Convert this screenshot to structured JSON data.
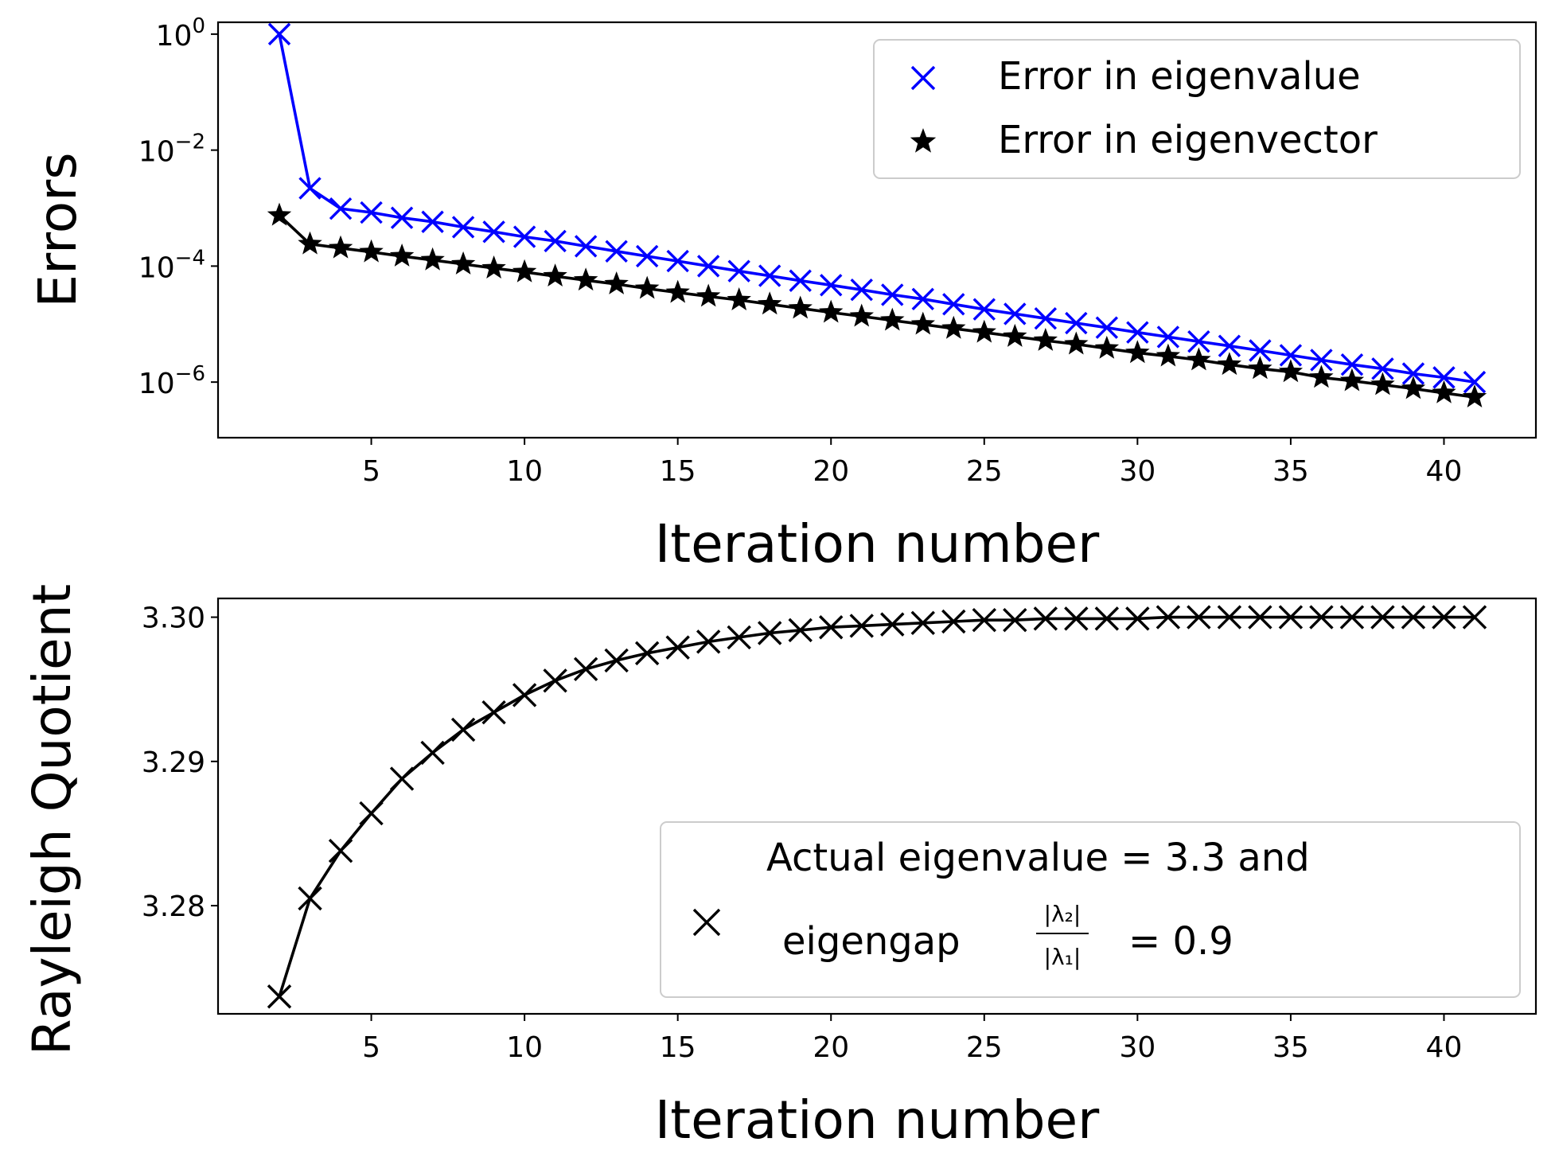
{
  "chart_data": [
    {
      "type": "line",
      "xlabel": "Iteration number",
      "ylabel": "Errors",
      "yscale": "log",
      "xlim": [
        0,
        43
      ],
      "ylim": [
        1.1e-07,
        1.6
      ],
      "xticks": [
        5,
        10,
        15,
        20,
        25,
        30,
        35,
        40
      ],
      "yticks": [
        {
          "value": 1,
          "base": "10",
          "exp": "0"
        },
        {
          "value": 0.01,
          "base": "10",
          "exp": "−2"
        },
        {
          "value": 0.0001,
          "base": "10",
          "exp": "−4"
        },
        {
          "value": 1e-06,
          "base": "10",
          "exp": "−6"
        }
      ],
      "legend": "top-right",
      "x": [
        2,
        3,
        4,
        5,
        6,
        7,
        8,
        9,
        10,
        11,
        12,
        13,
        14,
        15,
        16,
        17,
        18,
        19,
        20,
        21,
        22,
        23,
        24,
        25,
        26,
        27,
        28,
        29,
        30,
        31,
        32,
        33,
        34,
        35,
        36,
        37,
        38,
        39,
        40,
        41
      ],
      "series": [
        {
          "name": "Error in eigenvalue",
          "color": "#0000ff",
          "marker": "x",
          "values": [
            1.0,
            0.0022,
            0.00098,
            0.00084,
            0.00068,
            0.00058,
            0.00047,
            0.00039,
            0.00032,
            0.00027,
            0.00022,
            0.00018,
            0.000148,
            0.000122,
            0.0001,
            8.2e-05,
            6.8e-05,
            5.6e-05,
            4.7e-05,
            3.9e-05,
            3.2e-05,
            2.7e-05,
            2.2e-05,
            1.8e-05,
            1.5e-05,
            1.25e-05,
            1.04e-05,
            8.7e-06,
            7.2e-06,
            6e-06,
            5e-06,
            4.2e-06,
            3.5e-06,
            2.9e-06,
            2.4e-06,
            2e-06,
            1.7e-06,
            1.4e-06,
            1.2e-06,
            1e-06
          ]
        },
        {
          "name": "Error in eigenvector",
          "color": "#000000",
          "marker": "star",
          "values": [
            0.00075,
            0.00024,
            0.000205,
            0.000175,
            0.000148,
            0.000127,
            0.000108,
            9.2e-05,
            7.9e-05,
            6.7e-05,
            5.7e-05,
            4.9e-05,
            4.1e-05,
            3.5e-05,
            3e-05,
            2.6e-05,
            2.2e-05,
            1.87e-05,
            1.59e-05,
            1.36e-05,
            1.16e-05,
            9.9e-06,
            8.4e-06,
            7.2e-06,
            6.1e-06,
            5.2e-06,
            4.5e-06,
            3.8e-06,
            3.2e-06,
            2.8e-06,
            2.4e-06,
            2e-06,
            1.7e-06,
            1.5e-06,
            1.2e-06,
            1.05e-06,
            9e-07,
            7.7e-07,
            6.5e-07,
            5.5e-07
          ]
        }
      ]
    },
    {
      "type": "line",
      "xlabel": "Iteration number",
      "ylabel": "Rayleigh Quotient",
      "xlim": [
        0,
        43
      ],
      "ylim": [
        3.2725,
        3.3013
      ],
      "xticks": [
        5,
        10,
        15,
        20,
        25,
        30,
        35,
        40
      ],
      "yticks": [
        "3.28",
        "3.29",
        "3.30"
      ],
      "legend": "lower-right",
      "legend_text": {
        "line1": "Actual eigenvalue = 3.3  and",
        "line2_prefix": "eigengap",
        "frac_numerator": "|λ₂|",
        "frac_denominator": "|λ₁|",
        "line2_suffix": "= 0.9"
      },
      "x": [
        2,
        3,
        4,
        5,
        6,
        7,
        8,
        9,
        10,
        11,
        12,
        13,
        14,
        15,
        16,
        17,
        18,
        19,
        20,
        21,
        22,
        23,
        24,
        25,
        26,
        27,
        28,
        29,
        30,
        31,
        32,
        33,
        34,
        35,
        36,
        37,
        38,
        39,
        40,
        41
      ],
      "series": [
        {
          "color": "#000000",
          "marker": "x",
          "values": [
            3.2737,
            3.2805,
            3.2838,
            3.2864,
            3.2888,
            3.2906,
            3.2922,
            3.2934,
            3.2946,
            3.2956,
            3.2964,
            3.297,
            3.2975,
            3.2979,
            3.2983,
            3.2986,
            3.2989,
            3.2991,
            3.2993,
            3.2994,
            3.2995,
            3.2996,
            3.2997,
            3.2998,
            3.2998,
            3.2999,
            3.2999,
            3.2999,
            3.2999,
            3.3,
            3.3,
            3.3,
            3.3,
            3.3,
            3.3,
            3.3,
            3.3,
            3.3,
            3.3,
            3.3
          ]
        }
      ]
    }
  ]
}
